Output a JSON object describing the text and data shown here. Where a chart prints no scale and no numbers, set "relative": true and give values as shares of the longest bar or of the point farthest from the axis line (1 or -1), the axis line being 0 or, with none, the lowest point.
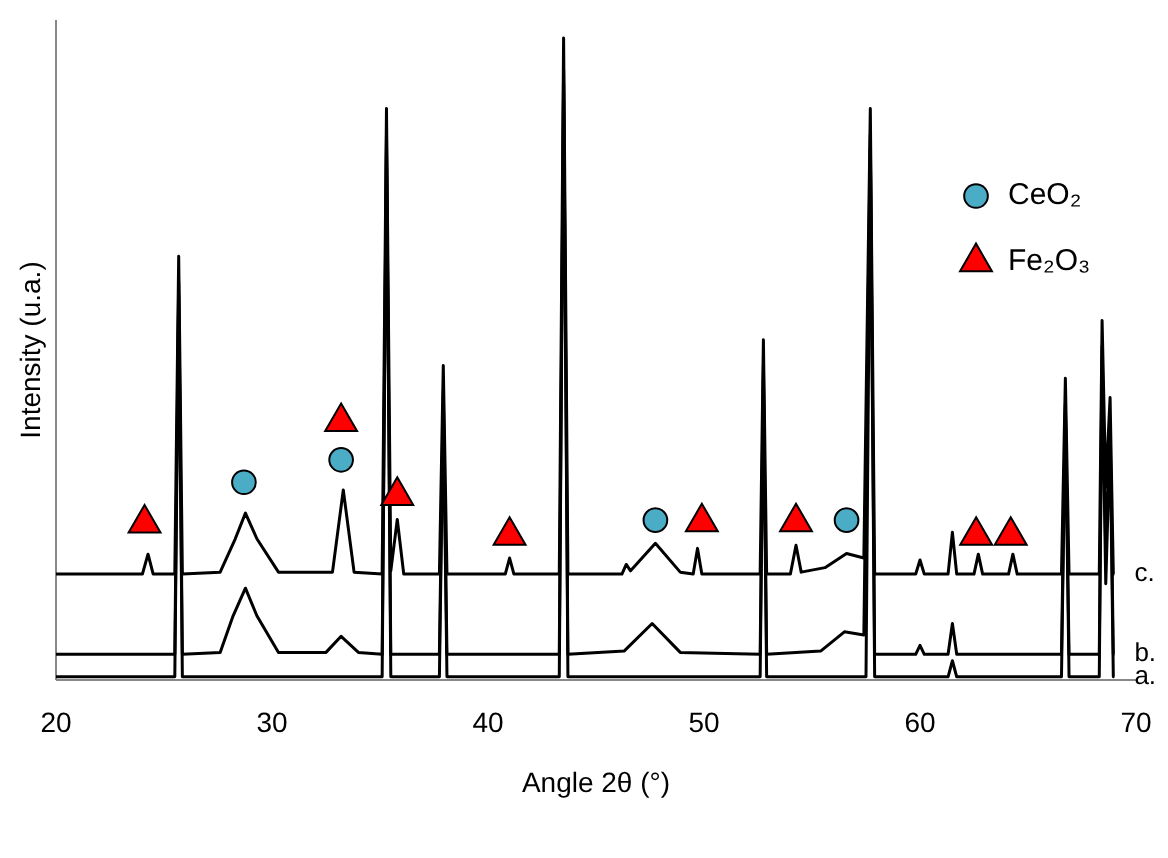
{
  "chart_data": {
    "type": "line",
    "relative": true,
    "xlabel": "Angle 2θ (°)",
    "ylabel": "Intensity (u.a.)",
    "xlim": [
      20,
      70
    ],
    "xticks": [
      20,
      30,
      40,
      50,
      60,
      70
    ],
    "legend": "top right",
    "grid": false,
    "series": [
      {
        "name": "a.",
        "color": "#000000",
        "x": [
          20,
          25.5,
          25.68,
          25.85,
          35.1,
          35.3,
          35.5,
          37.75,
          37.93,
          38.1,
          43.3,
          43.5,
          43.7,
          52.6,
          52.75,
          52.9,
          57.5,
          57.7,
          57.9,
          61.3,
          61.5,
          61.7,
          66.55,
          66.73,
          66.9,
          68.3,
          68.43,
          68.6,
          68.8,
          68.95,
          69
        ],
        "values": [
          0.005,
          0.005,
          0.6,
          0.005,
          0.005,
          0.83,
          0.005,
          0.005,
          0.43,
          0.005,
          0.005,
          0.93,
          0.005,
          0.005,
          0.47,
          0.005,
          0.005,
          0.83,
          0.005,
          0.005,
          0.03,
          0.005,
          0.005,
          0.42,
          0.005,
          0.005,
          0.5,
          0.15,
          0.38,
          0.005,
          0.005
        ]
      },
      {
        "name": "b.",
        "color": "#000000",
        "x": [
          20,
          25.5,
          25.68,
          25.85,
          27.6,
          28.2,
          28.77,
          29.3,
          30.3,
          32.5,
          33.2,
          34.0,
          35.1,
          35.3,
          35.5,
          37.75,
          37.93,
          38.1,
          43.3,
          43.5,
          43.7,
          46.3,
          47.6,
          48.9,
          52.6,
          52.75,
          52.9,
          55.4,
          56.5,
          57.4,
          57.7,
          57.9,
          59.8,
          60.0,
          60.2,
          61.3,
          61.5,
          61.7,
          66.55,
          66.73,
          66.9,
          68.3,
          68.43,
          68.6,
          68.8,
          68.95,
          69
        ],
        "values": [
          0.04,
          0.04,
          0.62,
          0.04,
          0.043,
          0.1,
          0.143,
          0.1,
          0.043,
          0.043,
          0.068,
          0.043,
          0.04,
          0.85,
          0.04,
          0.04,
          0.45,
          0.04,
          0.04,
          0.95,
          0.04,
          0.045,
          0.088,
          0.043,
          0.04,
          0.49,
          0.04,
          0.045,
          0.075,
          0.07,
          0.85,
          0.04,
          0.04,
          0.054,
          0.04,
          0.04,
          0.088,
          0.04,
          0.04,
          0.43,
          0.04,
          0.04,
          0.52,
          0.2,
          0.4,
          0.04,
          0.04
        ]
      },
      {
        "name": "c.",
        "color": "#000000",
        "x": [
          20,
          24.0,
          24.26,
          24.5,
          25.5,
          25.68,
          25.85,
          27.6,
          28.3,
          28.77,
          29.3,
          30.3,
          32.8,
          33.3,
          33.8,
          35.1,
          35.3,
          35.5,
          35.8,
          36.1,
          37.75,
          37.93,
          38.1,
          40.8,
          41.0,
          41.2,
          43.3,
          43.5,
          43.7,
          46.2,
          46.4,
          46.6,
          47.75,
          48.9,
          49.5,
          49.7,
          49.9,
          52.6,
          52.75,
          52.9,
          54.0,
          54.26,
          54.5,
          55.6,
          56.6,
          57.4,
          57.7,
          57.9,
          59.8,
          60.0,
          60.2,
          61.3,
          61.5,
          61.7,
          62.5,
          62.7,
          62.9,
          64.1,
          64.3,
          64.5,
          66.55,
          66.73,
          66.9,
          68.3,
          68.43,
          68.6,
          68.8,
          68.95,
          69
        ],
        "values": [
          0.165,
          0.165,
          0.196,
          0.165,
          0.165,
          0.66,
          0.165,
          0.168,
          0.22,
          0.26,
          0.22,
          0.168,
          0.168,
          0.296,
          0.168,
          0.165,
          0.89,
          0.17,
          0.25,
          0.165,
          0.165,
          0.49,
          0.165,
          0.165,
          0.19,
          0.165,
          0.165,
          1.0,
          0.165,
          0.165,
          0.18,
          0.17,
          0.213,
          0.168,
          0.165,
          0.205,
          0.165,
          0.165,
          0.53,
          0.165,
          0.165,
          0.21,
          0.168,
          0.175,
          0.197,
          0.19,
          0.89,
          0.165,
          0.165,
          0.187,
          0.165,
          0.165,
          0.23,
          0.165,
          0.165,
          0.196,
          0.165,
          0.165,
          0.196,
          0.165,
          0.165,
          0.47,
          0.165,
          0.165,
          0.56,
          0.3,
          0.44,
          0.165,
          0.165
        ]
      },
      {
        "name": "CeO₂",
        "type": "scatter",
        "color": "#4bacc6",
        "marker": "circle",
        "x": [
          28.7,
          33.2,
          47.75,
          56.6
        ],
        "values": [
          0.308,
          0.343,
          0.249,
          0.249
        ]
      },
      {
        "name": "Fe₂O₃",
        "type": "scatter",
        "color": "#ff0000",
        "marker": "triangle",
        "x": [
          24.1,
          33.2,
          35.8,
          41.0,
          49.9,
          54.26,
          62.6,
          64.2
        ],
        "values": [
          0.244,
          0.402,
          0.287,
          0.225,
          0.246,
          0.246,
          0.225,
          0.225
        ]
      }
    ]
  }
}
